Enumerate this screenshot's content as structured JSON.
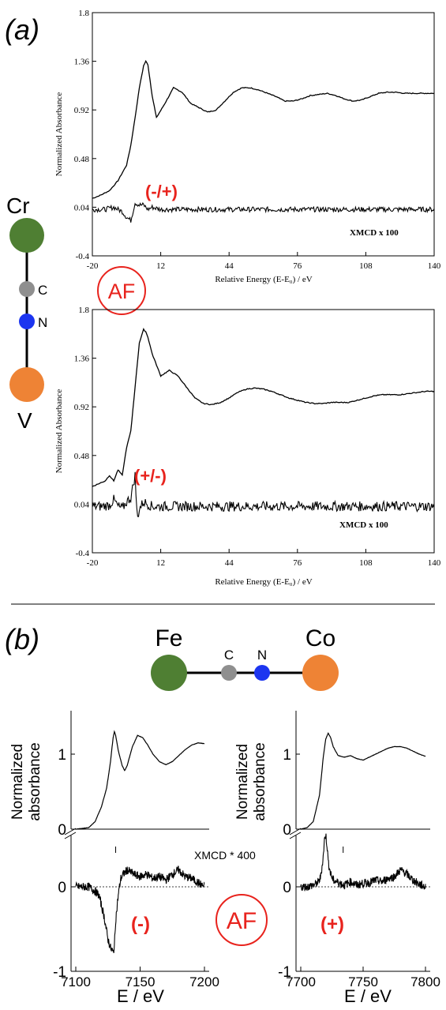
{
  "panel_a": {
    "label": "(a)",
    "molecule": {
      "metal_top": "Cr",
      "c": "C",
      "n": "N",
      "metal_bottom": "V"
    },
    "af_badge": "AF",
    "colors": {
      "cr": "#4f7f33",
      "v": "#ee8335",
      "c": "#8f8f8f",
      "n": "#1c35f0",
      "accent": "#e8231d"
    }
  },
  "panel_b": {
    "label": "(b)",
    "molecule": {
      "metal_left": "Fe",
      "c": "C",
      "n": "N",
      "metal_right": "Co"
    },
    "af_badge": "AF",
    "colors": {
      "fe": "#4f7f33",
      "co": "#ee8335",
      "c": "#8f8f8f",
      "n": "#1c35f0",
      "accent": "#e8231d"
    }
  },
  "chart_data": [
    {
      "type": "line",
      "title": "",
      "xlabel": "Relative Energy (E-E₀) / eV",
      "ylabel": "Normalized Absorbance",
      "xlim": [
        -20,
        140
      ],
      "ylim": [
        -0.4,
        1.8
      ],
      "xticks": [
        "-20",
        "12",
        "44",
        "76",
        "108",
        "140"
      ],
      "yticks": [
        "-0.4",
        "0.04",
        "0.48",
        "0.92",
        "1.36",
        "1.8"
      ],
      "annotations": [
        "XMCD x 100",
        "(-/+)"
      ],
      "series": [
        {
          "x": [
            -20,
            -16,
            -12,
            -8,
            -4,
            -2,
            0,
            2,
            4,
            5,
            6,
            8,
            10,
            14,
            18,
            22,
            26,
            30,
            34,
            38,
            42,
            46,
            50,
            54,
            58,
            62,
            66,
            70,
            74,
            78,
            82,
            86,
            90,
            94,
            98,
            102,
            106,
            110,
            114,
            118,
            122,
            126,
            130,
            134,
            140
          ],
          "values": [
            0.12,
            0.15,
            0.19,
            0.28,
            0.42,
            0.6,
            0.85,
            1.12,
            1.32,
            1.36,
            1.33,
            1.05,
            0.85,
            0.98,
            1.12,
            1.08,
            0.98,
            0.94,
            0.9,
            0.92,
            1.0,
            1.08,
            1.12,
            1.12,
            1.1,
            1.07,
            1.04,
            1.0,
            1.0,
            1.02,
            1.05,
            1.06,
            1.07,
            1.05,
            1.02,
            1.0,
            1.01,
            1.04,
            1.07,
            1.08,
            1.08,
            1.07,
            1.07,
            1.07,
            1.07
          ]
        },
        {
          "x": [
            -20,
            -14,
            -10,
            -6,
            -4,
            -2,
            0,
            2,
            4,
            6,
            8,
            12,
            20,
            40,
            60,
            80,
            100,
            120,
            140
          ],
          "values": [
            0.02,
            0.02,
            0.04,
            0.0,
            -0.05,
            -0.08,
            0.08,
            0.06,
            0.06,
            0.02,
            0.04,
            0.02,
            0.02,
            0.02,
            0.02,
            0.02,
            0.02,
            0.02,
            0.02
          ]
        }
      ]
    },
    {
      "type": "line",
      "title": "",
      "xlabel": "Relative Energy (E-E₀) / eV",
      "ylabel": "Normalized Absorbance",
      "xlim": [
        -20,
        140
      ],
      "ylim": [
        -0.4,
        1.8
      ],
      "xticks": [
        "-20",
        "12",
        "44",
        "76",
        "108",
        "140"
      ],
      "yticks": [
        "-0.4",
        "0.04",
        "0.48",
        "0.92",
        "1.36",
        "1.8"
      ],
      "annotations": [
        "XMCD x 100",
        "(+/-)"
      ],
      "series": [
        {
          "x": [
            -20,
            -14,
            -12,
            -10,
            -8,
            -6,
            -4,
            -2,
            0,
            2,
            4,
            5,
            6,
            8,
            10,
            12,
            16,
            20,
            24,
            28,
            32,
            36,
            40,
            44,
            48,
            52,
            56,
            60,
            64,
            68,
            72,
            76,
            80,
            84,
            88,
            92,
            96,
            100,
            104,
            108,
            112,
            116,
            120,
            124,
            128,
            132,
            136,
            140
          ],
          "values": [
            0.2,
            0.25,
            0.3,
            0.25,
            0.35,
            0.3,
            0.55,
            0.7,
            1.1,
            1.5,
            1.62,
            1.6,
            1.55,
            1.4,
            1.3,
            1.2,
            1.25,
            1.2,
            1.1,
            1.0,
            0.95,
            0.94,
            0.96,
            1.0,
            1.05,
            1.08,
            1.09,
            1.08,
            1.06,
            1.03,
            1.0,
            0.98,
            0.96,
            0.95,
            0.95,
            0.96,
            0.96,
            0.96,
            0.98,
            1.0,
            1.02,
            1.03,
            1.03,
            1.03,
            1.04,
            1.05,
            1.06,
            1.06
          ]
        },
        {
          "x": [
            -20,
            -16,
            -12,
            -10,
            -8,
            -6,
            -4,
            -2,
            0,
            1,
            2,
            4,
            8,
            12,
            20,
            40,
            60,
            80,
            100,
            120,
            140
          ],
          "values": [
            0.02,
            0.02,
            0.03,
            0.08,
            0.02,
            0.0,
            0.06,
            0.1,
            0.3,
            -0.1,
            0.0,
            0.06,
            0.02,
            0.02,
            0.02,
            0.02,
            0.02,
            0.02,
            0.02,
            0.02,
            0.02
          ]
        }
      ]
    },
    {
      "type": "line",
      "xlabel": "E / eV",
      "ylabel": "Normalized absorbance",
      "xlim": [
        7100,
        7200
      ],
      "xticks": [
        "7100",
        "7150",
        "7200"
      ],
      "top_yticks": [
        "1",
        "0"
      ],
      "bottom_yticks": [
        "0",
        "-1"
      ],
      "annotations": [
        "XMCD * 400",
        "(-)"
      ],
      "series": [
        {
          "name": "",
          "x": [
            7100,
            7110,
            7115,
            7120,
            7124,
            7127,
            7129,
            7130,
            7131,
            7133,
            7136,
            7138,
            7140,
            7144,
            7148,
            7152,
            7156,
            7160,
            7165,
            7170,
            7175,
            7180,
            7185,
            7190,
            7195,
            7200
          ],
          "values": [
            0.0,
            0.02,
            0.1,
            0.3,
            0.55,
            0.9,
            1.22,
            1.3,
            1.25,
            1.05,
            0.85,
            0.78,
            0.85,
            1.1,
            1.25,
            1.22,
            1.12,
            1.0,
            0.9,
            0.86,
            0.9,
            0.98,
            1.06,
            1.12,
            1.15,
            1.14
          ]
        },
        {
          "name": "",
          "x": [
            7100,
            7105,
            7110,
            7115,
            7118,
            7122,
            7125,
            7127,
            7129,
            7130,
            7131,
            7133,
            7135,
            7137,
            7140,
            7145,
            7150,
            7155,
            7160,
            7165,
            7170,
            7175,
            7180,
            7185,
            7190,
            7195,
            7200
          ],
          "values": [
            0.0,
            0.0,
            0.0,
            -0.05,
            -0.1,
            -0.35,
            -0.62,
            -0.72,
            -0.78,
            -0.7,
            -0.4,
            -0.1,
            0.1,
            0.15,
            0.2,
            0.15,
            0.12,
            0.15,
            0.1,
            0.12,
            0.08,
            0.15,
            0.2,
            0.12,
            0.1,
            0.05,
            0.0
          ]
        }
      ]
    },
    {
      "type": "line",
      "xlabel": "E / eV",
      "ylabel": "Normalized absorbance",
      "xlim": [
        7700,
        7800
      ],
      "xticks": [
        "7700",
        "7750",
        "7800"
      ],
      "top_yticks": [
        "1",
        "0"
      ],
      "bottom_yticks": [
        "0",
        "-1"
      ],
      "annotations": [
        "(+)"
      ],
      "series": [
        {
          "name": "",
          "x": [
            7700,
            7705,
            7710,
            7715,
            7718,
            7720,
            7722,
            7724,
            7726,
            7730,
            7735,
            7740,
            7745,
            7750,
            7755,
            7760,
            7765,
            7770,
            7775,
            7780,
            7785,
            7790,
            7795,
            7800
          ],
          "values": [
            0.0,
            0.02,
            0.1,
            0.45,
            0.95,
            1.2,
            1.28,
            1.22,
            1.1,
            0.98,
            0.96,
            0.98,
            0.94,
            0.92,
            0.96,
            1.0,
            1.04,
            1.08,
            1.1,
            1.1,
            1.08,
            1.04,
            1.0,
            0.97
          ]
        },
        {
          "name": "",
          "x": [
            7700,
            7705,
            7710,
            7714,
            7716,
            7718,
            7719,
            7720,
            7721,
            7722,
            7724,
            7726,
            7730,
            7735,
            7740,
            7745,
            7750,
            7755,
            7760,
            7765,
            7770,
            7775,
            7780,
            7785,
            7790,
            7795,
            7800
          ],
          "values": [
            0.0,
            0.0,
            0.02,
            0.05,
            0.12,
            0.35,
            0.55,
            0.62,
            0.5,
            0.3,
            0.15,
            0.08,
            0.05,
            0.02,
            0.06,
            0.02,
            0.04,
            0.05,
            0.08,
            0.06,
            0.1,
            0.12,
            0.2,
            0.15,
            0.08,
            0.03,
            0.0
          ]
        }
      ]
    }
  ]
}
